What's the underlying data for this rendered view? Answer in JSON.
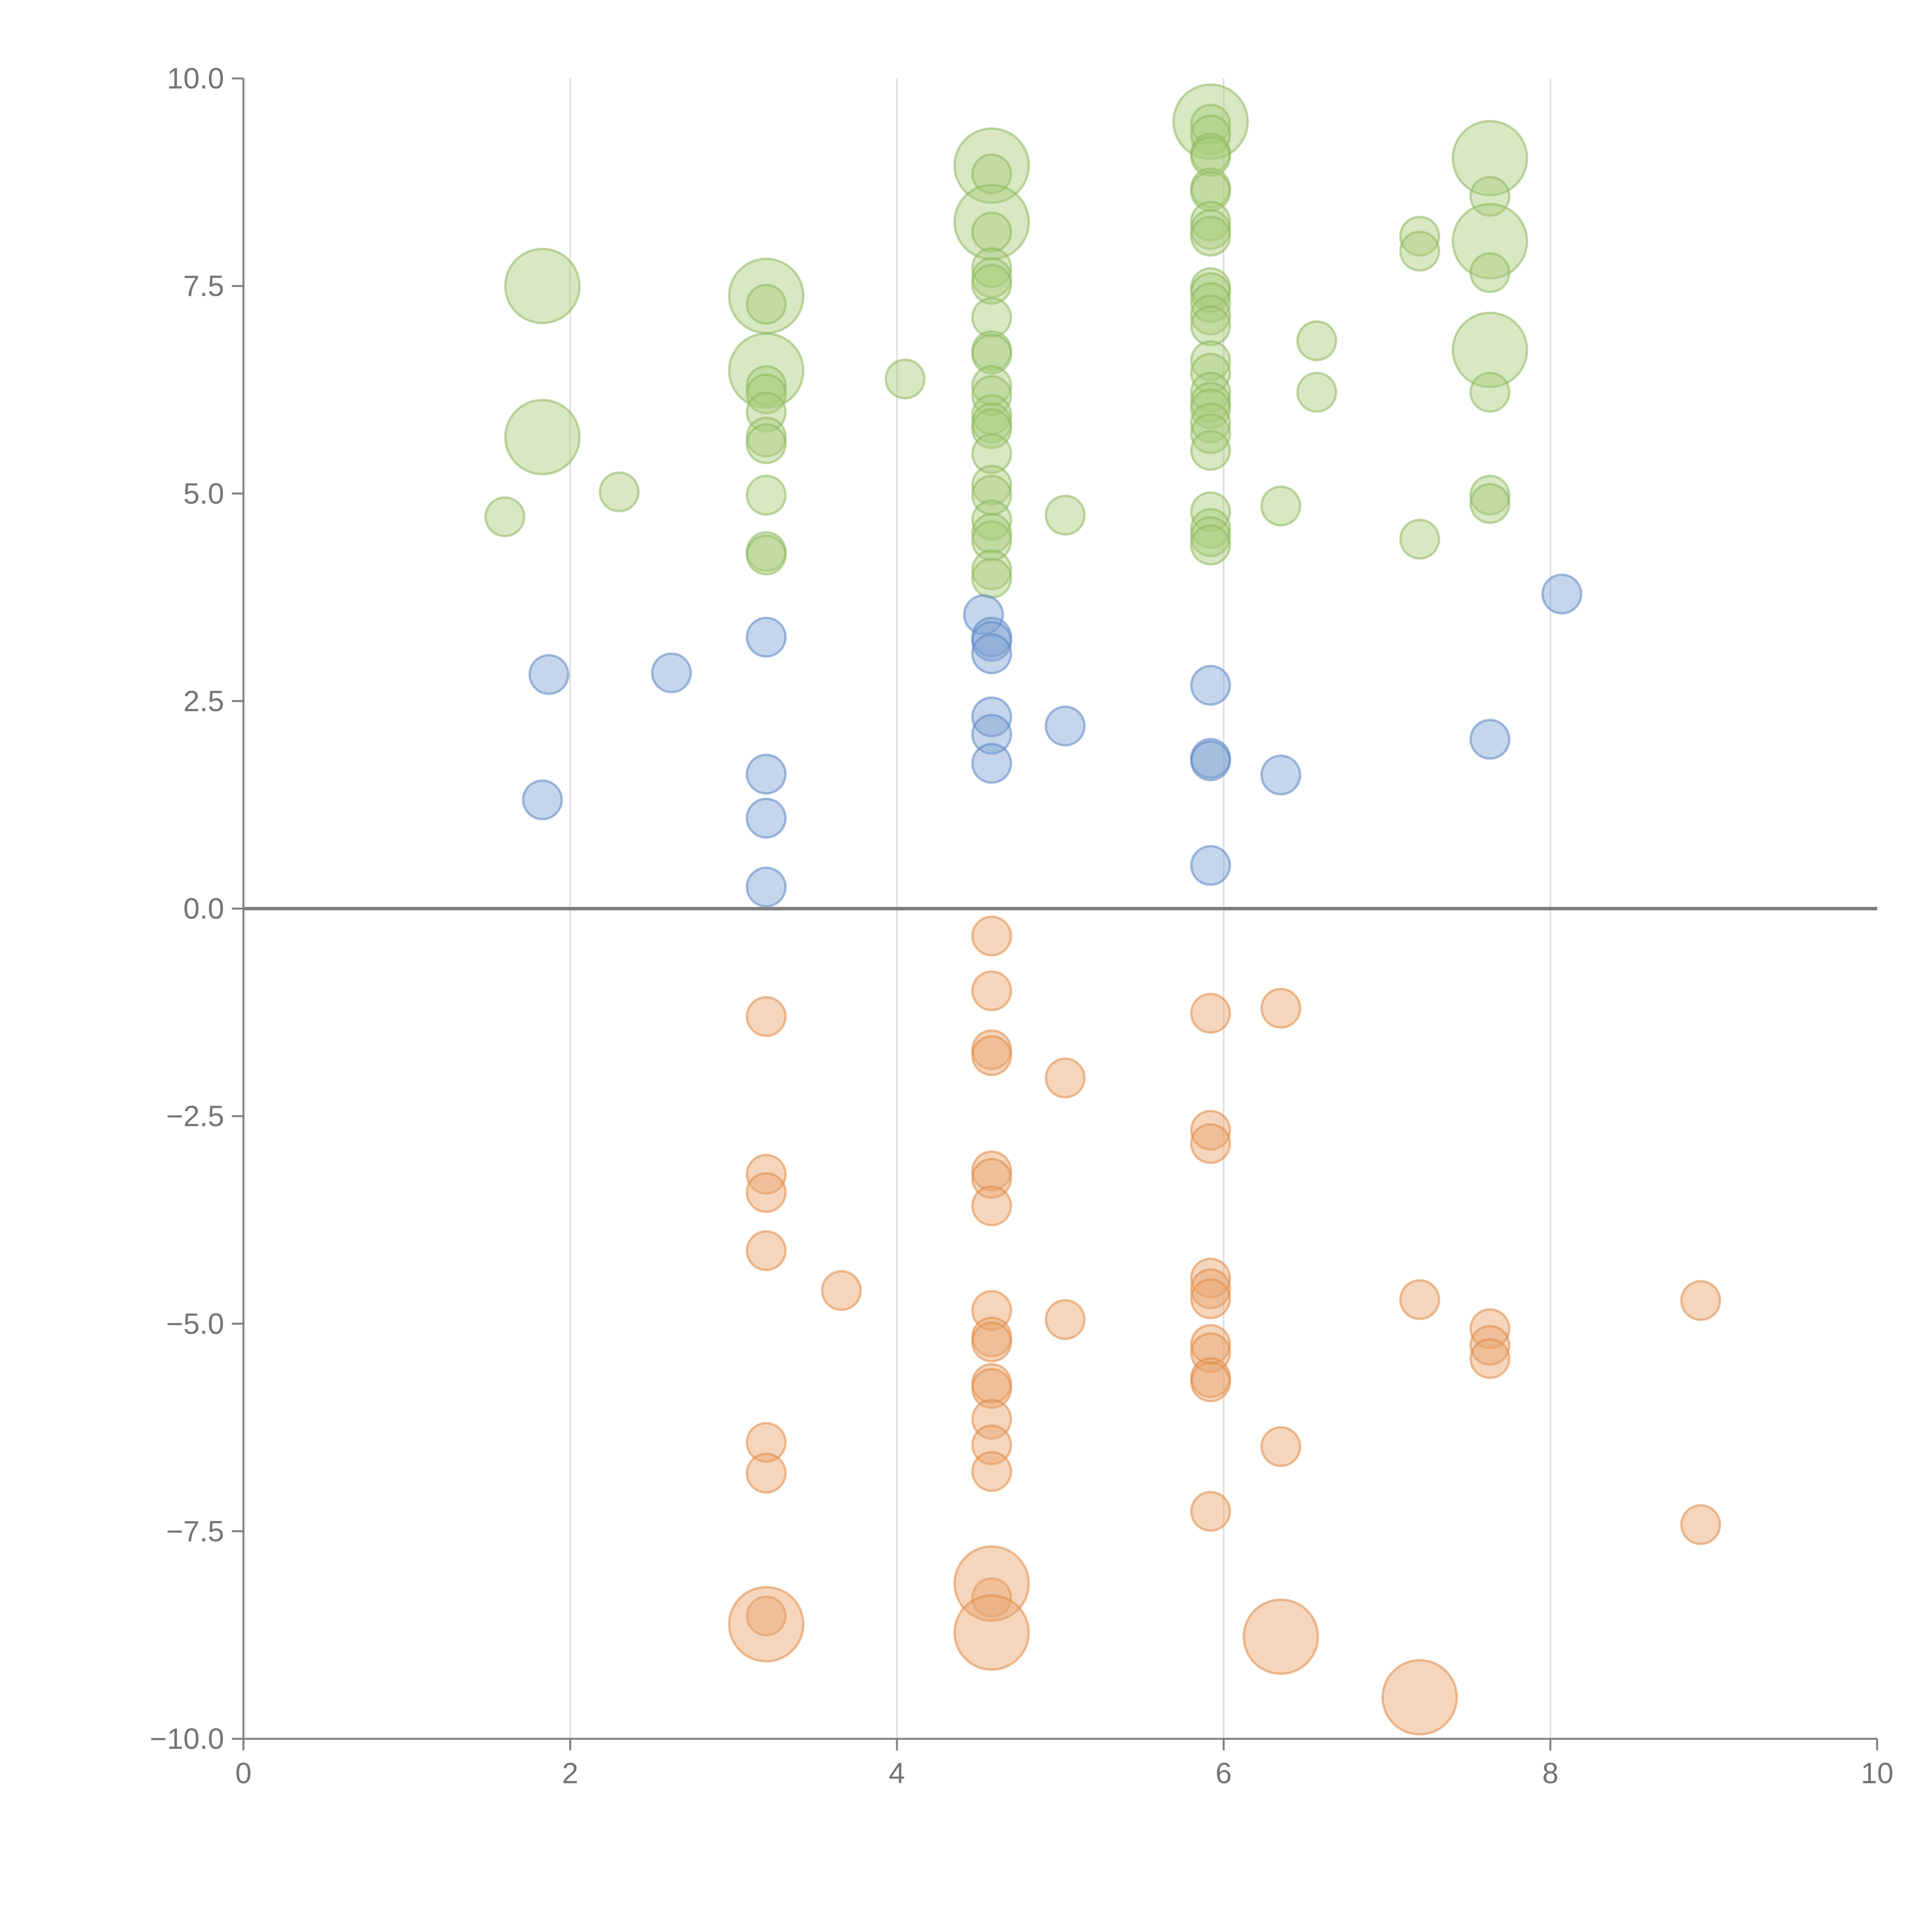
{
  "chart_data": {
    "type": "scatter",
    "title": "",
    "xlabel": "",
    "ylabel": "",
    "xlim": [
      0,
      10
    ],
    "ylim": [
      -10,
      10
    ],
    "x_ticks": [
      "0",
      "2",
      "4",
      "6",
      "8",
      "10"
    ],
    "y_ticks": [
      "10.0",
      "7.5",
      "5.0",
      "2.5",
      "0.0",
      "−2.5",
      "−5.0",
      "−7.5",
      "−10.0"
    ],
    "grid": "vertical lines at x ticks",
    "zero_line": true,
    "legend": "none",
    "colors": {
      "green_fill": "#a8cc7a",
      "green_stroke": "#8cb85c",
      "blue_fill": "#7ea1d2",
      "blue_stroke": "#5b87c4",
      "orange_fill": "#e8a36c",
      "orange_stroke": "#e08a45"
    },
    "series": [
      {
        "color_key": "green",
        "points": [
          [
            1.6,
            4.72,
            1
          ],
          [
            1.83,
            7.5,
            2
          ],
          [
            1.83,
            5.68,
            2
          ],
          [
            2.3,
            5.02,
            1
          ],
          [
            3.2,
            7.38,
            2
          ],
          [
            3.2,
            7.28,
            1
          ],
          [
            3.2,
            6.48,
            2
          ],
          [
            3.2,
            6.3,
            1
          ],
          [
            3.2,
            6.2,
            1
          ],
          [
            3.2,
            5.98,
            1
          ],
          [
            3.2,
            5.68,
            1
          ],
          [
            3.2,
            5.6,
            1
          ],
          [
            3.2,
            4.98,
            1
          ],
          [
            3.2,
            4.3,
            1
          ],
          [
            3.2,
            4.26,
            1
          ],
          [
            4.05,
            6.38,
            1
          ],
          [
            4.58,
            8.95,
            2
          ],
          [
            4.58,
            8.85,
            1
          ],
          [
            4.58,
            8.27,
            2
          ],
          [
            4.58,
            8.15,
            1
          ],
          [
            4.58,
            7.72,
            1
          ],
          [
            4.58,
            7.6,
            1
          ],
          [
            4.58,
            7.52,
            1
          ],
          [
            4.58,
            7.12,
            1
          ],
          [
            4.58,
            6.72,
            1
          ],
          [
            4.58,
            6.68,
            1
          ],
          [
            4.58,
            6.3,
            1
          ],
          [
            4.58,
            6.18,
            1
          ],
          [
            4.58,
            5.95,
            1
          ],
          [
            4.58,
            5.85,
            1
          ],
          [
            4.58,
            5.78,
            1
          ],
          [
            4.58,
            5.48,
            1
          ],
          [
            4.58,
            5.1,
            1
          ],
          [
            4.58,
            4.98,
            1
          ],
          [
            4.58,
            4.68,
            1
          ],
          [
            4.58,
            4.52,
            1
          ],
          [
            4.58,
            4.43,
            1
          ],
          [
            4.58,
            4.08,
            1
          ],
          [
            4.58,
            3.98,
            1
          ],
          [
            5.03,
            4.74,
            1
          ],
          [
            5.92,
            9.48,
            2
          ],
          [
            5.92,
            9.45,
            1
          ],
          [
            5.92,
            9.32,
            1
          ],
          [
            5.92,
            9.1,
            1
          ],
          [
            5.92,
            9.06,
            1
          ],
          [
            5.92,
            8.68,
            1
          ],
          [
            5.92,
            8.64,
            1
          ],
          [
            5.92,
            8.28,
            1
          ],
          [
            5.92,
            8.18,
            1
          ],
          [
            5.92,
            8.1,
            1
          ],
          [
            5.92,
            7.48,
            1
          ],
          [
            5.92,
            7.42,
            1
          ],
          [
            5.92,
            7.3,
            1
          ],
          [
            5.92,
            7.15,
            1
          ],
          [
            5.92,
            7.02,
            1
          ],
          [
            5.92,
            6.6,
            1
          ],
          [
            5.92,
            6.45,
            1
          ],
          [
            5.92,
            6.22,
            1
          ],
          [
            5.92,
            6.1,
            1
          ],
          [
            5.92,
            6.02,
            1
          ],
          [
            5.92,
            5.85,
            1
          ],
          [
            5.92,
            5.72,
            1
          ],
          [
            5.92,
            5.52,
            1
          ],
          [
            5.92,
            4.78,
            1
          ],
          [
            5.92,
            4.58,
            1
          ],
          [
            5.92,
            4.48,
            1
          ],
          [
            5.92,
            4.38,
            1
          ],
          [
            6.35,
            4.85,
            1
          ],
          [
            6.57,
            6.84,
            1
          ],
          [
            6.57,
            6.22,
            1
          ],
          [
            7.2,
            8.1,
            1
          ],
          [
            7.2,
            7.92,
            1
          ],
          [
            7.2,
            4.45,
            1
          ],
          [
            7.63,
            9.04,
            2
          ],
          [
            7.63,
            8.58,
            1
          ],
          [
            7.63,
            8.04,
            2
          ],
          [
            7.63,
            7.66,
            1
          ],
          [
            7.63,
            6.73,
            2
          ],
          [
            7.63,
            6.22,
            1
          ],
          [
            7.63,
            4.98,
            1
          ],
          [
            7.63,
            4.88,
            1
          ]
        ]
      },
      {
        "color_key": "blue",
        "points": [
          [
            1.83,
            1.31,
            1
          ],
          [
            1.87,
            2.82,
            1
          ],
          [
            2.62,
            2.84,
            1
          ],
          [
            3.2,
            3.27,
            1
          ],
          [
            3.2,
            1.62,
            1
          ],
          [
            3.2,
            1.09,
            1
          ],
          [
            3.2,
            0.26,
            1
          ],
          [
            4.53,
            3.54,
            1
          ],
          [
            4.58,
            3.27,
            1
          ],
          [
            4.58,
            3.22,
            1
          ],
          [
            4.58,
            3.07,
            1
          ],
          [
            4.58,
            2.31,
            1
          ],
          [
            4.58,
            2.1,
            1
          ],
          [
            4.58,
            1.75,
            1
          ],
          [
            5.03,
            2.2,
            1
          ],
          [
            5.92,
            2.69,
            1
          ],
          [
            5.92,
            1.81,
            1
          ],
          [
            5.92,
            1.78,
            1
          ],
          [
            5.92,
            0.52,
            1
          ],
          [
            6.35,
            1.61,
            1
          ],
          [
            7.63,
            2.04,
            1
          ],
          [
            8.07,
            3.79,
            1
          ]
        ]
      },
      {
        "color_key": "orange",
        "points": [
          [
            3.2,
            -1.3,
            1
          ],
          [
            3.2,
            -3.2,
            1
          ],
          [
            3.2,
            -3.42,
            1
          ],
          [
            3.2,
            -4.12,
            1
          ],
          [
            3.2,
            -6.43,
            1
          ],
          [
            3.2,
            -6.8,
            1
          ],
          [
            3.2,
            -8.52,
            1
          ],
          [
            3.2,
            -8.62,
            2
          ],
          [
            3.66,
            -4.6,
            1
          ],
          [
            4.58,
            -0.33,
            1
          ],
          [
            4.58,
            -0.99,
            1
          ],
          [
            4.58,
            -1.7,
            1
          ],
          [
            4.58,
            -1.77,
            1
          ],
          [
            4.58,
            -3.16,
            1
          ],
          [
            4.58,
            -3.25,
            1
          ],
          [
            4.58,
            -3.58,
            1
          ],
          [
            4.58,
            -4.84,
            1
          ],
          [
            4.58,
            -5.16,
            1
          ],
          [
            4.58,
            -5.22,
            1
          ],
          [
            4.58,
            -5.72,
            1
          ],
          [
            4.58,
            -5.78,
            1
          ],
          [
            4.58,
            -6.15,
            1
          ],
          [
            4.58,
            -6.46,
            1
          ],
          [
            4.58,
            -6.78,
            1
          ],
          [
            4.58,
            -8.3,
            1
          ],
          [
            4.58,
            -8.13,
            2
          ],
          [
            4.58,
            -8.72,
            2
          ],
          [
            5.03,
            -2.04,
            1
          ],
          [
            5.03,
            -4.95,
            1
          ],
          [
            5.92,
            -1.26,
            1
          ],
          [
            5.92,
            -2.67,
            1
          ],
          [
            5.92,
            -2.83,
            1
          ],
          [
            5.92,
            -4.45,
            1
          ],
          [
            5.92,
            -4.58,
            1
          ],
          [
            5.92,
            -4.7,
            1
          ],
          [
            5.92,
            -5.25,
            1
          ],
          [
            5.92,
            -5.35,
            1
          ],
          [
            5.92,
            -5.65,
            1
          ],
          [
            5.92,
            -5.7,
            1
          ],
          [
            5.92,
            -7.26,
            1
          ],
          [
            6.35,
            -1.2,
            1
          ],
          [
            6.35,
            -6.48,
            1
          ],
          [
            6.35,
            -8.77,
            2
          ],
          [
            7.2,
            -4.71,
            1
          ],
          [
            7.2,
            -9.5,
            2
          ],
          [
            7.63,
            -5.06,
            1
          ],
          [
            7.63,
            -5.26,
            1
          ],
          [
            7.63,
            -5.42,
            1
          ],
          [
            8.92,
            -4.72,
            1
          ],
          [
            8.92,
            -7.42,
            1
          ]
        ]
      }
    ]
  }
}
